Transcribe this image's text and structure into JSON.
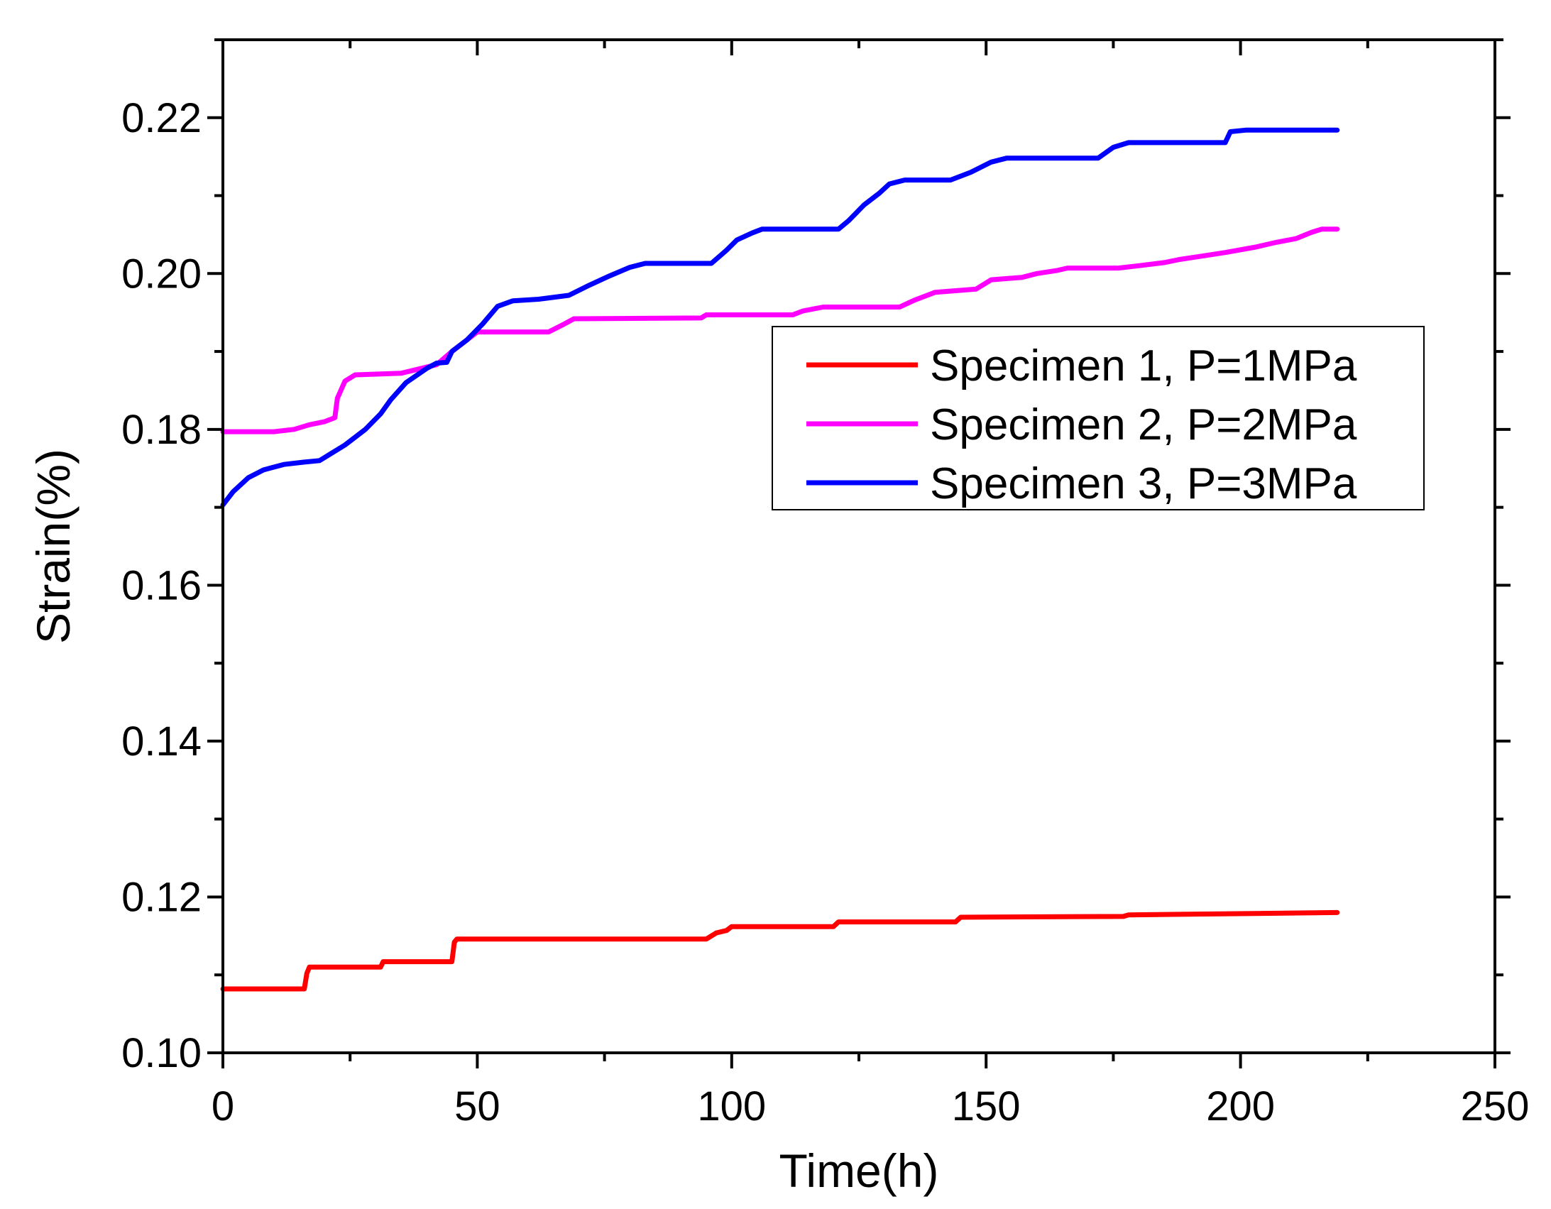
{
  "chart_data": {
    "type": "line",
    "title": "",
    "xlabel": "Time(h)",
    "ylabel": "Strain(%)",
    "xlim": [
      0,
      250
    ],
    "ylim": [
      0.1,
      0.23
    ],
    "x_ticks": [
      0,
      50,
      100,
      150,
      200,
      250
    ],
    "x_tick_labels": [
      "0",
      "50",
      "100",
      "150",
      "200",
      "250"
    ],
    "y_ticks": [
      0.1,
      0.12,
      0.14,
      0.16,
      0.18,
      0.2,
      0.22
    ],
    "y_tick_labels": [
      "0.10",
      "0.12",
      "0.14",
      "0.16",
      "0.18",
      "0.20",
      "0.22"
    ],
    "grid": false,
    "legend_position": "upper-right",
    "series": [
      {
        "name": "Specimen 1, P=1MPa",
        "color": "#ff0000",
        "points": [
          [
            0,
            0.1082
          ],
          [
            16,
            0.1082
          ],
          [
            16.5,
            0.1102
          ],
          [
            17,
            0.111
          ],
          [
            31,
            0.111
          ],
          [
            31.5,
            0.1117
          ],
          [
            45,
            0.1117
          ],
          [
            45.5,
            0.1142
          ],
          [
            46,
            0.1146
          ],
          [
            95,
            0.1146
          ],
          [
            97,
            0.1154
          ],
          [
            99,
            0.1157
          ],
          [
            100,
            0.1162
          ],
          [
            120,
            0.1162
          ],
          [
            121,
            0.1168
          ],
          [
            144,
            0.1168
          ],
          [
            145,
            0.1174
          ],
          [
            177,
            0.1175
          ],
          [
            178,
            0.1177
          ],
          [
            219,
            0.118
          ]
        ]
      },
      {
        "name": "Specimen 2, P=2MPa",
        "color": "#ff00ff",
        "points": [
          [
            0,
            0.1797
          ],
          [
            10,
            0.1797
          ],
          [
            14,
            0.18
          ],
          [
            17,
            0.1806
          ],
          [
            20,
            0.181
          ],
          [
            22,
            0.1815
          ],
          [
            22.5,
            0.184
          ],
          [
            24,
            0.1862
          ],
          [
            26,
            0.187
          ],
          [
            35,
            0.1872
          ],
          [
            42,
            0.1883
          ],
          [
            45,
            0.19
          ],
          [
            48,
            0.1915
          ],
          [
            50,
            0.1925
          ],
          [
            64,
            0.1925
          ],
          [
            67,
            0.1935
          ],
          [
            69,
            0.1942
          ],
          [
            94,
            0.1943
          ],
          [
            95,
            0.1947
          ],
          [
            112,
            0.1947
          ],
          [
            114,
            0.1952
          ],
          [
            118,
            0.1957
          ],
          [
            133,
            0.1957
          ],
          [
            136,
            0.1966
          ],
          [
            140,
            0.1976
          ],
          [
            148,
            0.198
          ],
          [
            151,
            0.1992
          ],
          [
            157,
            0.1995
          ],
          [
            160,
            0.2
          ],
          [
            164,
            0.2004
          ],
          [
            166,
            0.2007
          ],
          [
            176,
            0.2007
          ],
          [
            180,
            0.201
          ],
          [
            185,
            0.2014
          ],
          [
            188,
            0.2018
          ],
          [
            192,
            0.2022
          ],
          [
            197,
            0.2027
          ],
          [
            203,
            0.2034
          ],
          [
            207,
            0.204
          ],
          [
            211,
            0.2045
          ],
          [
            214,
            0.2053
          ],
          [
            216,
            0.2057
          ],
          [
            219,
            0.2057
          ]
        ]
      },
      {
        "name": "Specimen 3, P=3MPa",
        "color": "#0000ff",
        "points": [
          [
            0,
            0.1703
          ],
          [
            2,
            0.172
          ],
          [
            5,
            0.1738
          ],
          [
            8,
            0.1748
          ],
          [
            12,
            0.1755
          ],
          [
            16,
            0.1758
          ],
          [
            19,
            0.176
          ],
          [
            21,
            0.1768
          ],
          [
            24,
            0.178
          ],
          [
            28,
            0.18
          ],
          [
            31,
            0.182
          ],
          [
            33,
            0.1838
          ],
          [
            36,
            0.186
          ],
          [
            40,
            0.1878
          ],
          [
            42,
            0.1885
          ],
          [
            44,
            0.1886
          ],
          [
            45,
            0.19
          ],
          [
            48,
            0.1915
          ],
          [
            51,
            0.1935
          ],
          [
            54,
            0.1958
          ],
          [
            57,
            0.1965
          ],
          [
            62,
            0.1967
          ],
          [
            68,
            0.1972
          ],
          [
            72,
            0.1985
          ],
          [
            76,
            0.1997
          ],
          [
            80,
            0.2008
          ],
          [
            83,
            0.2013
          ],
          [
            96,
            0.2013
          ],
          [
            99,
            0.203
          ],
          [
            101,
            0.2043
          ],
          [
            104,
            0.2052
          ],
          [
            106,
            0.2057
          ],
          [
            121,
            0.2057
          ],
          [
            123,
            0.2068
          ],
          [
            126,
            0.2088
          ],
          [
            129,
            0.2103
          ],
          [
            131,
            0.2115
          ],
          [
            134,
            0.212
          ],
          [
            143,
            0.212
          ],
          [
            147,
            0.213
          ],
          [
            151,
            0.2143
          ],
          [
            154,
            0.2148
          ],
          [
            172,
            0.2148
          ],
          [
            175,
            0.2162
          ],
          [
            178,
            0.2168
          ],
          [
            197,
            0.2168
          ],
          [
            198,
            0.2182
          ],
          [
            201,
            0.2184
          ],
          [
            219,
            0.2184
          ]
        ]
      }
    ]
  }
}
